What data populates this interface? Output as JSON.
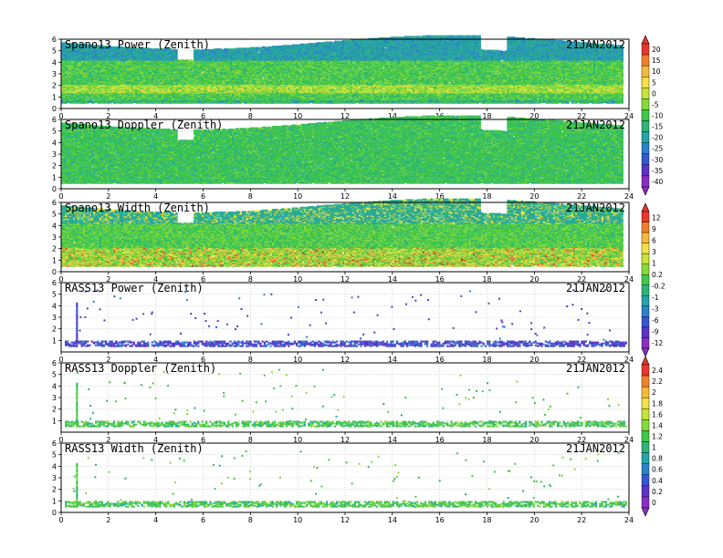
{
  "date_label": "21JAN2012",
  "chart_data": [
    {
      "type": "heatmap",
      "title": "Spano13 Power (Zenith)",
      "date": "21JAN2012",
      "x_ticks": [
        0,
        2,
        4,
        6,
        8,
        10,
        12,
        14,
        16,
        18,
        20,
        22,
        24
      ],
      "xlim": [
        0,
        24
      ],
      "y_ticks": [
        0,
        1,
        2,
        3,
        4,
        5,
        6
      ],
      "ylim": [
        0,
        6
      ],
      "style": "dense",
      "field": "power",
      "colorbar_group": "power-doppler"
    },
    {
      "type": "heatmap",
      "title": "Spano13 Doppler (Zenith)",
      "date": "21JAN2012",
      "x_ticks": [
        0,
        2,
        4,
        6,
        8,
        10,
        12,
        14,
        16,
        18,
        20,
        22,
        24
      ],
      "xlim": [
        0,
        24
      ],
      "y_ticks": [
        0,
        1,
        2,
        3,
        4,
        5,
        6
      ],
      "ylim": [
        0,
        6
      ],
      "style": "dense",
      "field": "doppler",
      "colorbar_group": "power-doppler"
    },
    {
      "type": "heatmap",
      "title": "Spano13 Width (Zenith)",
      "date": "21JAN2012",
      "x_ticks": [
        0,
        2,
        4,
        6,
        8,
        10,
        12,
        14,
        16,
        18,
        20,
        22,
        24
      ],
      "xlim": [
        0,
        24
      ],
      "y_ticks": [
        0,
        1,
        2,
        3,
        4,
        5,
        6
      ],
      "ylim": [
        0,
        6
      ],
      "style": "dense",
      "field": "width",
      "colorbar_group": "width-rasspower"
    },
    {
      "type": "heatmap",
      "title": "RASS13 Power (Zenith)",
      "date": "21JAN2012",
      "x_ticks": [
        0,
        2,
        4,
        6,
        8,
        10,
        12,
        14,
        16,
        18,
        20,
        22,
        24
      ],
      "xlim": [
        0,
        24
      ],
      "y_ticks": [
        1,
        2,
        3,
        4,
        5,
        6
      ],
      "ylim": [
        0,
        6
      ],
      "style": "sparse",
      "field": "rass_power",
      "colorbar_group": "width-rasspower"
    },
    {
      "type": "heatmap",
      "title": "RASS13 Doppler (Zenith)",
      "date": "21JAN2012",
      "x_ticks": [
        0,
        2,
        4,
        6,
        8,
        10,
        12,
        14,
        16,
        18,
        20,
        22,
        24
      ],
      "xlim": [
        0,
        24
      ],
      "y_ticks": [
        1,
        2,
        3,
        4,
        5,
        6
      ],
      "ylim": [
        0,
        6
      ],
      "style": "sparse",
      "field": "rass_doppler",
      "colorbar_group": "rass"
    },
    {
      "type": "heatmap",
      "title": "RASS13 Width (Zenith)",
      "date": "21JAN2012",
      "x_ticks": [
        0,
        2,
        4,
        6,
        8,
        10,
        12,
        14,
        16,
        18,
        20,
        22,
        24
      ],
      "xlim": [
        0,
        24
      ],
      "y_ticks": [
        0,
        1,
        2,
        3,
        4,
        5,
        6
      ],
      "ylim": [
        0,
        6
      ],
      "style": "sparse",
      "field": "rass_width",
      "colorbar_group": "rass"
    }
  ],
  "colorbars": [
    {
      "name": "power-doppler",
      "labels": [
        "20",
        "15",
        "10",
        "5",
        "0",
        "-5",
        "-10",
        "-15",
        "-20",
        "-25",
        "-30",
        "-35",
        "-40"
      ],
      "colors": [
        "#e8372e",
        "#f07f2a",
        "#f6b83d",
        "#f2e04a",
        "#c8e23c",
        "#86d93a",
        "#3fc84a",
        "#2fb37a",
        "#26a5a8",
        "#2a83c9",
        "#3556d1",
        "#5a33c8",
        "#8a2fc2"
      ]
    },
    {
      "name": "width-rasspower",
      "labels": [
        "12",
        "9",
        "6",
        "3",
        "1",
        "0.2",
        "-0.2",
        "-1",
        "-3",
        "-6",
        "-9",
        "-12"
      ],
      "colors": [
        "#e8372e",
        "#f07f2a",
        "#f6b83d",
        "#f2e04a",
        "#c8e23c",
        "#86d93a",
        "#3fc84a",
        "#2fb37a",
        "#26a5a8",
        "#2a83c9",
        "#3556d1",
        "#5a33c8",
        "#8a2fc2"
      ]
    },
    {
      "name": "rass",
      "labels": [
        "2.4",
        "2.2",
        "2",
        "1.8",
        "1.6",
        "1.4",
        "1.2",
        "1",
        "0.8",
        "0.6",
        "0.4",
        "0.2",
        "0"
      ],
      "colors": [
        "#e8372e",
        "#f07f2a",
        "#f6b83d",
        "#f2e04a",
        "#c8e23c",
        "#86d93a",
        "#3fc84a",
        "#2fb37a",
        "#26a5a8",
        "#2a83c9",
        "#3556d1",
        "#5a33c8",
        "#8a2fc2"
      ]
    }
  ]
}
